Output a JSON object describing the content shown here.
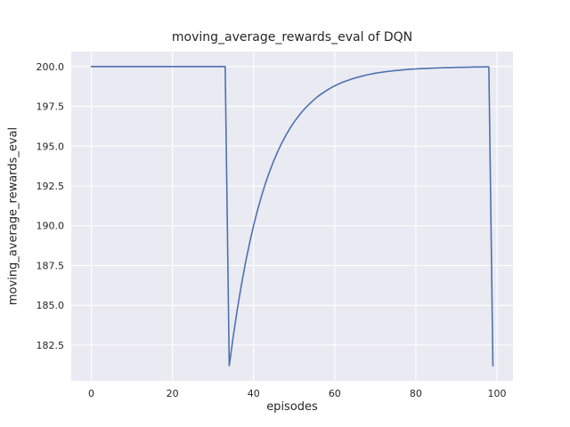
{
  "chart_data": {
    "type": "line",
    "title": "moving_average_rewards_eval of DQN",
    "xlabel": "episodes",
    "ylabel": "moving_average_rewards_eval",
    "x": [
      0,
      1,
      2,
      3,
      4,
      5,
      6,
      7,
      8,
      9,
      10,
      11,
      12,
      13,
      14,
      15,
      16,
      17,
      18,
      19,
      20,
      21,
      22,
      23,
      24,
      25,
      26,
      27,
      28,
      29,
      30,
      31,
      32,
      33,
      34,
      35,
      36,
      37,
      38,
      39,
      40,
      41,
      42,
      43,
      44,
      45,
      46,
      47,
      48,
      49,
      50,
      51,
      52,
      53,
      54,
      55,
      56,
      57,
      58,
      59,
      60,
      61,
      62,
      63,
      64,
      65,
      66,
      67,
      68,
      69,
      70,
      71,
      72,
      73,
      74,
      75,
      76,
      77,
      78,
      79,
      80,
      81,
      82,
      83,
      84,
      85,
      86,
      87,
      88,
      89,
      90,
      91,
      92,
      93,
      94,
      95,
      96,
      97,
      98,
      99
    ],
    "y": [
      200.0,
      200.0,
      200.0,
      200.0,
      200.0,
      200.0,
      200.0,
      200.0,
      200.0,
      200.0,
      200.0,
      200.0,
      200.0,
      200.0,
      200.0,
      200.0,
      200.0,
      200.0,
      200.0,
      200.0,
      200.0,
      200.0,
      200.0,
      200.0,
      200.0,
      200.0,
      200.0,
      200.0,
      200.0,
      200.0,
      200.0,
      200.0,
      200.0,
      200.0,
      181.2,
      183.08,
      184.77,
      186.29,
      187.67,
      188.9,
      190.01,
      191.01,
      191.91,
      192.72,
      193.44,
      194.1,
      194.69,
      195.22,
      195.7,
      196.13,
      196.52,
      196.86,
      197.18,
      197.46,
      197.71,
      197.94,
      198.15,
      198.33,
      198.5,
      198.65,
      198.79,
      198.91,
      199.02,
      199.11,
      199.2,
      199.28,
      199.35,
      199.42,
      199.48,
      199.53,
      199.58,
      199.62,
      199.66,
      199.69,
      199.72,
      199.75,
      199.77,
      199.8,
      199.82,
      199.84,
      199.85,
      199.87,
      199.88,
      199.89,
      199.9,
      199.91,
      199.92,
      199.93,
      199.94,
      199.94,
      199.95,
      199.95,
      199.96,
      199.96,
      199.97,
      199.97,
      199.97,
      199.98,
      199.98,
      181.2
    ],
    "xlim": [
      -4.95,
      103.95
    ],
    "ylim": [
      180.26,
      200.94
    ],
    "x_tick_values": [
      0,
      20,
      40,
      60,
      80,
      100
    ],
    "x_tick_labels": [
      "0",
      "20",
      "40",
      "60",
      "80",
      "100"
    ],
    "y_tick_values": [
      182.5,
      185.0,
      187.5,
      190.0,
      192.5,
      195.0,
      197.5,
      200.0
    ],
    "y_tick_labels": [
      "182.5",
      "185.0",
      "187.5",
      "190.0",
      "192.5",
      "195.0",
      "197.5",
      "200.0"
    ],
    "grid": true,
    "legend_position": "none",
    "colors": {
      "line": "#4c72b0",
      "axes_background": "#eaeaf2",
      "grid": "#ffffff",
      "figure_background": "#ffffff",
      "text": "#262626"
    }
  }
}
